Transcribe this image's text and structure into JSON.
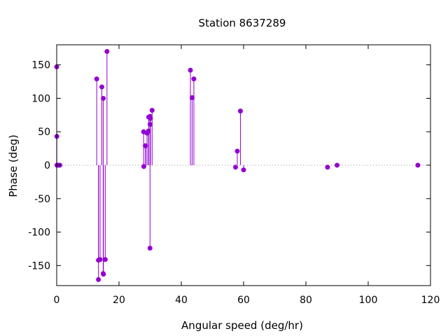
{
  "chart_data": {
    "type": "scatter",
    "style": "impulses-with-points",
    "title": "Station 8637289",
    "xlabel": "Angular speed (deg/hr)",
    "ylabel": "Phase (deg)",
    "xlim": [
      0,
      120
    ],
    "ylim": [
      -180,
      180
    ],
    "xticks": [
      0,
      20,
      40,
      60,
      80,
      100,
      120
    ],
    "yticks": [
      -150,
      -100,
      -50,
      0,
      50,
      100,
      150
    ],
    "xtick_labels": [
      "0",
      "20",
      "40",
      "60",
      "80",
      "100",
      "120"
    ],
    "ytick_labels": [
      "-150",
      "-100",
      "-50",
      "0",
      "50",
      "100",
      "150"
    ],
    "zero_line": true,
    "grid": false,
    "color": "#9400d3",
    "series": [
      {
        "points": [
          {
            "x": 0.0,
            "y": 147
          },
          {
            "x": 0.04,
            "y": 43
          },
          {
            "x": 0.08,
            "y": 0
          },
          {
            "x": 0.5,
            "y": 0
          },
          {
            "x": 1.0,
            "y": 0
          },
          {
            "x": 12.85,
            "y": 129
          },
          {
            "x": 13.4,
            "y": -171
          },
          {
            "x": 13.4,
            "y": -142
          },
          {
            "x": 13.94,
            "y": -141
          },
          {
            "x": 14.49,
            "y": 117
          },
          {
            "x": 14.92,
            "y": -162
          },
          {
            "x": 14.96,
            "y": 100
          },
          {
            "x": 15.0,
            "y": -163
          },
          {
            "x": 15.59,
            "y": -141
          },
          {
            "x": 16.14,
            "y": 170
          },
          {
            "x": 27.9,
            "y": 50
          },
          {
            "x": 27.97,
            "y": -2
          },
          {
            "x": 28.44,
            "y": 29
          },
          {
            "x": 28.51,
            "y": 29
          },
          {
            "x": 28.99,
            "y": 48
          },
          {
            "x": 29.46,
            "y": 51
          },
          {
            "x": 29.53,
            "y": 72
          },
          {
            "x": 29.96,
            "y": 73
          },
          {
            "x": 29.96,
            "y": -124
          },
          {
            "x": 30.0,
            "y": 61
          },
          {
            "x": 30.08,
            "y": 70
          },
          {
            "x": 30.63,
            "y": 82
          },
          {
            "x": 42.93,
            "y": 142
          },
          {
            "x": 43.48,
            "y": 101
          },
          {
            "x": 44.03,
            "y": 129
          },
          {
            "x": 57.42,
            "y": -3
          },
          {
            "x": 57.97,
            "y": 21
          },
          {
            "x": 58.98,
            "y": 81
          },
          {
            "x": 60.0,
            "y": -7
          },
          {
            "x": 86.95,
            "y": -3
          },
          {
            "x": 90.0,
            "y": 0
          },
          {
            "x": 115.94,
            "y": 0
          }
        ]
      }
    ]
  }
}
